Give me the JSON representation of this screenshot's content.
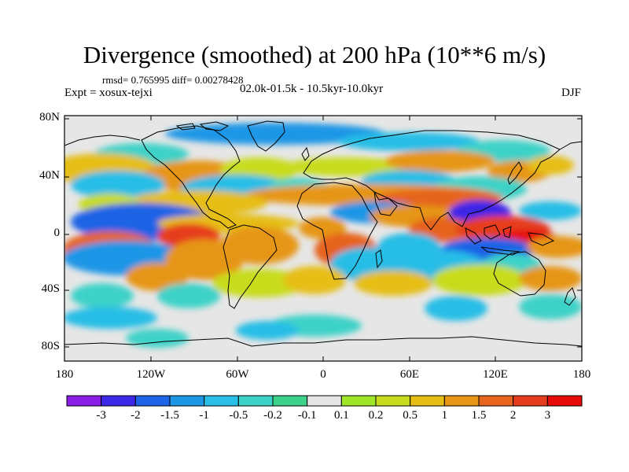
{
  "title": "Divergence (smoothed) at 200 hPa (10**6 m/s)",
  "stats_line": "rmsd= 0.765995 diff= 0.00278428",
  "experiment": "Expt = xosux-tejxi",
  "period": "02.0k-01.5k - 10.5kyr-10.0kyr",
  "season": "DJF",
  "y_axis_labels": [
    "80N",
    "40N",
    "0",
    "40S",
    "80S"
  ],
  "x_axis_labels": [
    "180",
    "120W",
    "60W",
    "0",
    "60E",
    "120E",
    "180"
  ],
  "colorbar": {
    "labels": [
      "-3",
      "-2",
      "-1.5",
      "-1",
      "-0.5",
      "-0.2",
      "-0.1",
      "0.1",
      "0.2",
      "0.5",
      "1",
      "1.5",
      "2",
      "3"
    ],
    "colors": [
      "#8a1ee6",
      "#3c28e6",
      "#1e64e6",
      "#1e96e6",
      "#28bee6",
      "#3cd2c8",
      "#3cd28c",
      "#e6e6e6",
      "#a0e628",
      "#c8dc1e",
      "#e6be14",
      "#e69614",
      "#e6641e",
      "#e63c1e",
      "#e60a0a"
    ]
  }
}
